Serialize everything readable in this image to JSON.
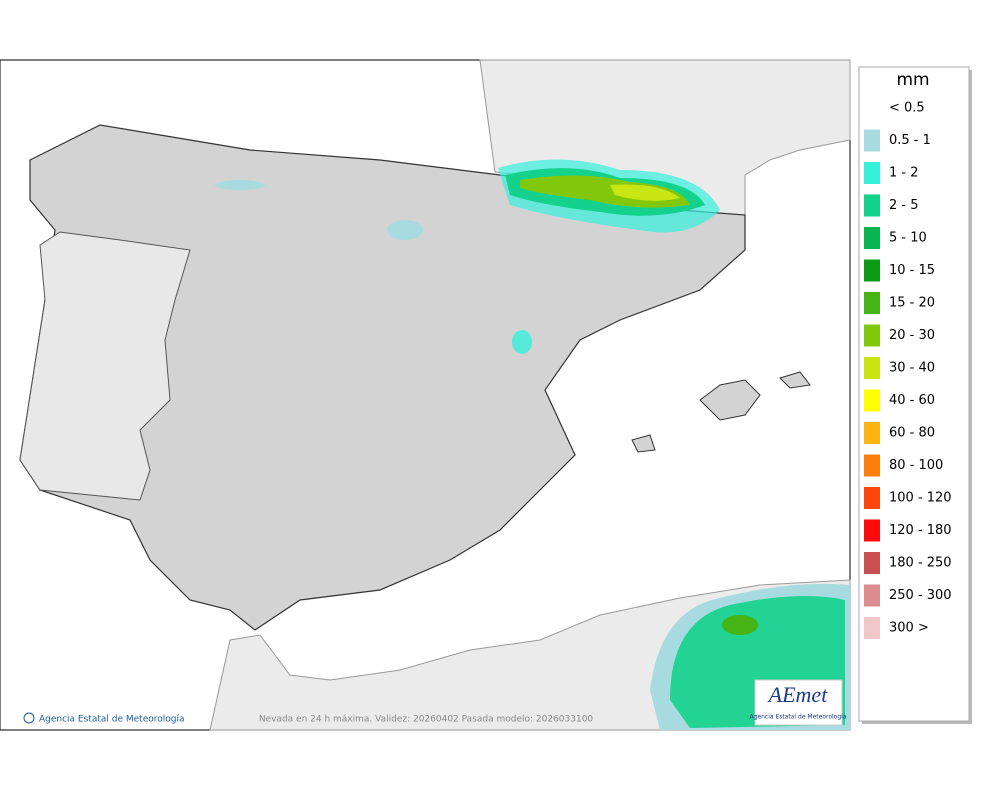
{
  "legend": {
    "unit": "mm",
    "items": [
      {
        "label": "< 0.5"
      },
      {
        "label": "0.5 - 1",
        "color": "#a8dbe0"
      },
      {
        "label": "1 - 2",
        "color": "#36f0dc"
      },
      {
        "label": "2 - 5",
        "color": "#14d28c"
      },
      {
        "label": "5 - 10",
        "color": "#0ab450"
      },
      {
        "label": "10 - 15",
        "color": "#0a9a14"
      },
      {
        "label": "15 - 20",
        "color": "#46b414"
      },
      {
        "label": "20 - 30",
        "color": "#82c80a"
      },
      {
        "label": "30 - 40",
        "color": "#c8e614"
      },
      {
        "label": "40 - 60",
        "color": "#ffff00"
      },
      {
        "label": "60 - 80",
        "color": "#ffb414"
      },
      {
        "label": "80 - 100",
        "color": "#ff7d0a"
      },
      {
        "label": "100 - 120",
        "color": "#ff460a"
      },
      {
        "label": "120 - 180",
        "color": "#ff0a0a"
      },
      {
        "label": "180 - 250",
        "color": "#c85050"
      },
      {
        "label": "250 - 300",
        "color": "#dc8c8c"
      },
      {
        "label": "300 >",
        "color": "#f0c8c8"
      }
    ]
  },
  "footer": {
    "credit": "Agencia Estatal de Meteorología",
    "caption": "Nevada en 24 h máxima. Validez: 20260402 Pasada modelo: 2026033100"
  },
  "logo": {
    "name": "AEmet",
    "subtitle": "Agencia Estatal de Meteorología"
  }
}
